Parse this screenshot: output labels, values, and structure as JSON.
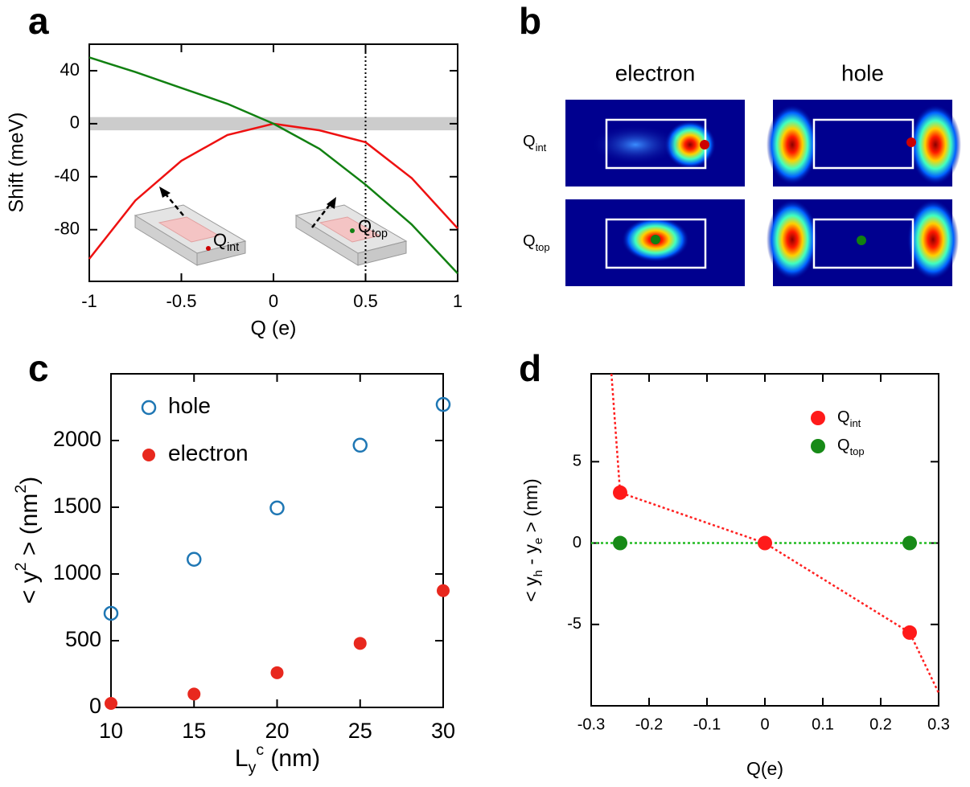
{
  "chart_data": [
    {
      "type": "line",
      "panel": "a",
      "xlabel": "Q (e)",
      "ylabel": "Shift (meV)",
      "xlim": [
        -1,
        1
      ],
      "xticks": [
        -1,
        -0.5,
        0,
        0.5,
        1
      ],
      "ylim": [
        -119,
        60
      ],
      "yticks": [
        40,
        0,
        -40,
        -80
      ],
      "band": [
        -5,
        5
      ],
      "band_color": "#cccccc",
      "vline": 0.5,
      "x": [
        -1,
        -0.75,
        -0.5,
        -0.25,
        0,
        0.25,
        0.5,
        0.75,
        1
      ],
      "series": [
        {
          "color": "#ee1111",
          "values": [
            -102,
            -58,
            -28,
            -8.5,
            0,
            -5,
            -14,
            -41,
            -79
          ]
        },
        {
          "color": "#118011",
          "values": [
            50,
            39,
            27,
            15,
            0,
            -19,
            -46,
            -76,
            -113
          ]
        }
      ],
      "annotations": [
        {
          "color": "#cc0000",
          "text": [
            {
              "t": "Q"
            },
            {
              "t": "int",
              "sub": true
            }
          ]
        },
        {
          "color": "#118011",
          "text": [
            {
              "t": "Q"
            },
            {
              "t": "top",
              "sub": true
            }
          ]
        }
      ]
    },
    {
      "type": "image",
      "panel": "b",
      "columns": [
        "electron",
        "hole"
      ],
      "rows": [
        {
          "color": "#cc0000",
          "text": [
            {
              "t": "Q"
            },
            {
              "t": "int",
              "sub": true
            }
          ]
        },
        {
          "color": "#118011",
          "text": [
            {
              "t": "Q"
            },
            {
              "t": "top",
              "sub": true
            }
          ]
        }
      ]
    },
    {
      "type": "scatter",
      "panel": "c",
      "xlabel": [
        {
          "t": "L"
        },
        {
          "t": "y",
          "sub": true
        },
        {
          "t": "c",
          "sup": true
        },
        {
          "t": "  (nm)"
        }
      ],
      "ylabel": [
        {
          "t": "< y"
        },
        {
          "t": "2",
          "sup": true
        },
        {
          "t": " >  (nm"
        },
        {
          "t": "2",
          "sup": true
        },
        {
          "t": ")"
        }
      ],
      "xlim": [
        10,
        30
      ],
      "xticks": [
        10,
        15,
        20,
        25,
        30
      ],
      "ylim": [
        0,
        2500
      ],
      "yticks": [
        0,
        500,
        1000,
        1500,
        2000
      ],
      "x": [
        10,
        15,
        20,
        25,
        30
      ],
      "series": [
        {
          "name": [
            {
              "t": "hole"
            }
          ],
          "color": "#1f77b4",
          "filled": false,
          "values": [
            705,
            1110,
            1495,
            1965,
            2270
          ]
        },
        {
          "name": [
            {
              "t": "electron"
            }
          ],
          "color": "#e8281e",
          "filled": true,
          "values": [
            30,
            100,
            260,
            480,
            875
          ]
        }
      ]
    },
    {
      "type": "scatter",
      "panel": "d",
      "xlabel": [
        {
          "t": "Q(e)"
        }
      ],
      "ylabel": [
        {
          "t": "< y"
        },
        {
          "t": "h",
          "sub": true
        },
        {
          "t": " - y"
        },
        {
          "t": "e",
          "sub": true
        },
        {
          "t": " > (nm)"
        }
      ],
      "xlim": [
        -0.3,
        0.3
      ],
      "xticks": [
        -0.3,
        -0.2,
        -0.1,
        0,
        0.1,
        0.2,
        0.3
      ],
      "ylim": [
        -10,
        10.4
      ],
      "yticks": [
        5,
        0,
        -5
      ],
      "guides": [
        {
          "color": "#ff2020",
          "x": [
            -0.265,
            -0.25,
            0,
            0.25,
            0.3
          ],
          "values": [
            10.4,
            3.1,
            0,
            -5.5,
            -9.2
          ]
        },
        {
          "color": "#22bb22",
          "x": [
            -0.3,
            0.3
          ],
          "values": [
            0,
            0
          ]
        }
      ],
      "series": [
        {
          "name": [
            {
              "t": "Q"
            },
            {
              "t": "int",
              "sub": true
            }
          ],
          "color": "#ff1a1a",
          "filled": true,
          "x": [
            -0.25,
            0,
            0.25
          ],
          "values": [
            3.1,
            0,
            -5.5
          ]
        },
        {
          "name": [
            {
              "t": "Q"
            },
            {
              "t": "top",
              "sub": true
            }
          ],
          "color": "#178a17",
          "filled": true,
          "x": [
            -0.25,
            0.25
          ],
          "values": [
            0,
            0
          ]
        }
      ]
    }
  ]
}
